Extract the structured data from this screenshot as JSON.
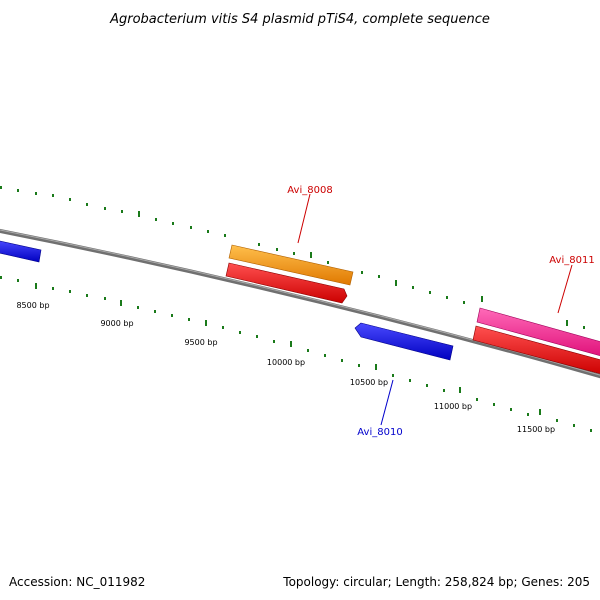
{
  "title": "Agrobacterium vitis S4 plasmid pTiS4, complete sequence",
  "footer": {
    "accession": "Accession: NC_011982",
    "summary": "Topology: circular; Length: 258,824 bp; Genes: 205"
  },
  "colors": {
    "backbone": "#808080",
    "tick": "#1a7a1a",
    "label_red": "#cc0000",
    "label_blue": "#0000cc"
  },
  "scale_labels": [
    "8500 bp",
    "9000 bp",
    "9500 bp",
    "10000 bp",
    "10500 bp",
    "11000 bp",
    "11500 bp"
  ],
  "genes": [
    {
      "name": "Avi_8008",
      "color": "#ff8c00",
      "label_color": "#cc0000"
    },
    {
      "name": "Avi_8010",
      "color": "#0000ee",
      "label_color": "#0000cc"
    },
    {
      "name": "Avi_8011",
      "color": "#ff1493",
      "label_color": "#cc0000"
    }
  ]
}
